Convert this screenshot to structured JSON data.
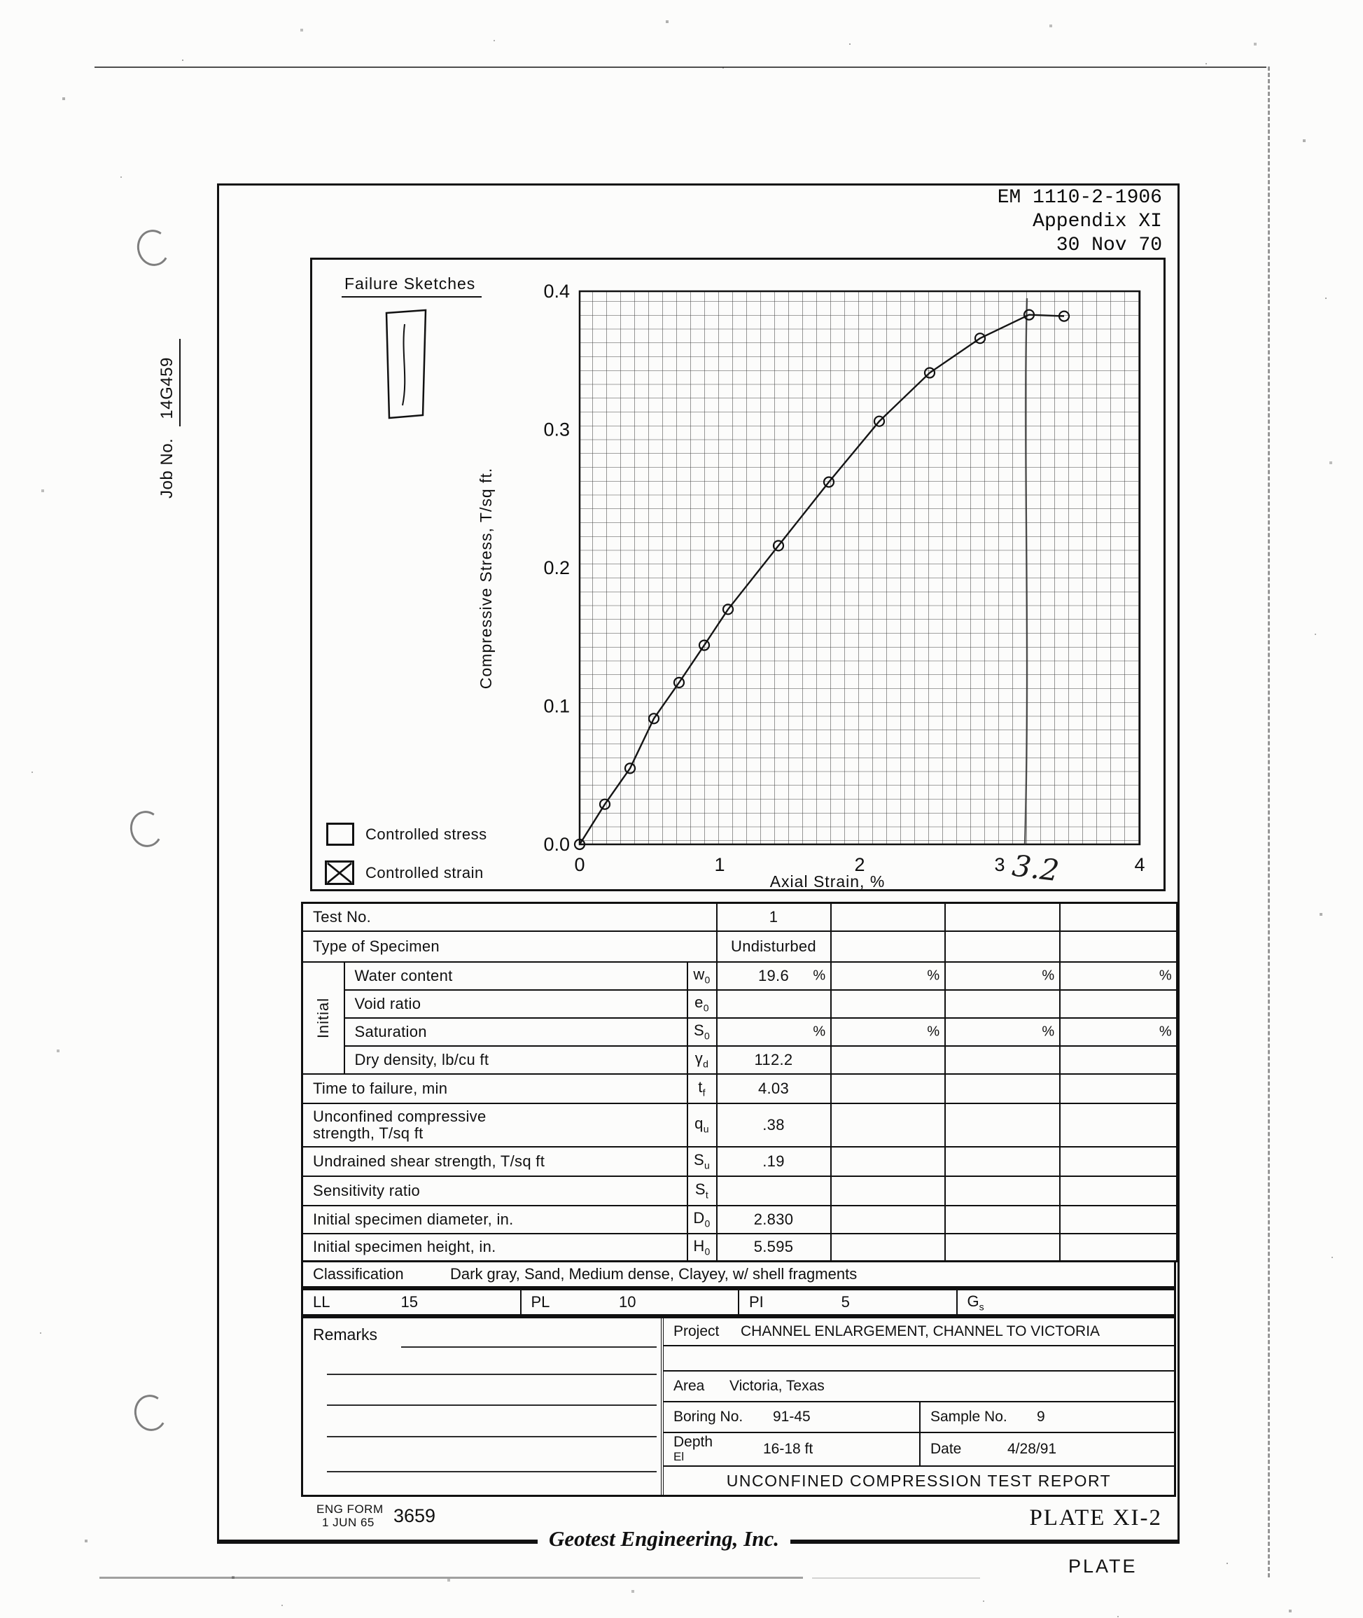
{
  "margin": {
    "job_label": "Job No.",
    "job_value": "14G459"
  },
  "header": {
    "line1": "EM 1110-2-1906",
    "line2": "Appendix XI",
    "line3": "30 Nov 70"
  },
  "chart": {
    "panel_title": "Failure Sketches",
    "legend": [
      {
        "label": "Controlled stress",
        "checked": false
      },
      {
        "label": "Controlled strain",
        "checked": true
      }
    ],
    "failure_strain_annotation": "3.2"
  },
  "chart_data": {
    "type": "line",
    "title": "",
    "xlabel": "Axial Strain, %",
    "ylabel": "Compressive Stress, T/sq ft.",
    "xlim": [
      0,
      4
    ],
    "ylim": [
      0,
      0.4
    ],
    "x_ticks": [
      0,
      1,
      2,
      3,
      4
    ],
    "y_ticks": [
      0,
      0.1,
      0.2,
      0.3,
      0.4
    ],
    "grid": true,
    "grid_step_x": 0.1,
    "grid_step_y": 0.01,
    "legend_position": "none",
    "series": [
      {
        "name": "Test 1 (Undisturbed)",
        "marker": "circle",
        "x": [
          0,
          0.18,
          0.36,
          0.53,
          0.71,
          0.89,
          1.06,
          1.42,
          1.78,
          2.14,
          2.5,
          2.86,
          3.21,
          3.46
        ],
        "y": [
          0,
          0.029,
          0.055,
          0.091,
          0.117,
          0.144,
          0.17,
          0.216,
          0.262,
          0.306,
          0.341,
          0.366,
          0.383,
          0.382
        ]
      }
    ],
    "annotations": [
      {
        "type": "vline",
        "x": 3.2,
        "style": "hand-drawn pencil line"
      },
      {
        "type": "text",
        "x": 3.2,
        "text": "3.2",
        "style": "handwritten"
      }
    ]
  },
  "spec_table": {
    "group_label": "Initial",
    "test_no": {
      "label": "Test No.",
      "v1": "1"
    },
    "type": {
      "label": "Type of Specimen",
      "v1": "Undisturbed"
    },
    "water": {
      "label": "Water content",
      "sym": "w",
      "sub": "0",
      "v1": "19.6",
      "u1": "%",
      "u2": "%",
      "u3": "%",
      "u4": "%"
    },
    "void": {
      "label": "Void ratio",
      "sym": "e",
      "sub": "0"
    },
    "sat": {
      "label": "Saturation",
      "sym": "S",
      "sub": "0",
      "u1": "%",
      "u2": "%",
      "u3": "%",
      "u4": "%"
    },
    "density": {
      "label": "Dry density, lb/cu ft",
      "sym": "γ",
      "sub": "d",
      "v1": "112.2"
    },
    "time": {
      "label": "Time to failure, min",
      "sym": "t",
      "sub": "f",
      "v1": "4.03"
    },
    "qu": {
      "label1": "Unconfined compressive",
      "label2": "strength, T/sq ft",
      "sym": "q",
      "sub": "u",
      "v1": ".38"
    },
    "su": {
      "label": "Undrained shear strength, T/sq ft",
      "sym": "S",
      "sub": "u",
      "v1": ".19"
    },
    "st": {
      "label": "Sensitivity ratio",
      "sym": "S",
      "sub": "t"
    },
    "d0": {
      "label": "Initial specimen diameter, in.",
      "sym": "D",
      "sub": "0",
      "v1": "2.830"
    },
    "h0": {
      "label": "Initial specimen height, in.",
      "sym": "H",
      "sub": "0",
      "v1": "5.595"
    }
  },
  "classification": {
    "label": "Classification",
    "value": "Dark gray, Sand, Medium dense, Clayey, w/ shell fragments"
  },
  "atterberg": {
    "ll_label": "LL",
    "ll": "15",
    "pl_label": "PL",
    "pl": "10",
    "pi_label": "PI",
    "pi": "5",
    "gs_label": "G",
    "gs_sub": "s",
    "gs": ""
  },
  "remarks": {
    "label": "Remarks"
  },
  "project_block": {
    "project_label": "Project",
    "project": "CHANNEL ENLARGEMENT, CHANNEL TO VICTORIA",
    "area_label": "Area",
    "area": "Victoria, Texas",
    "boring_label": "Boring No.",
    "boring": "91-45",
    "sample_label": "Sample No.",
    "sample": "9",
    "depth_label": "Depth",
    "depth_label2": "El",
    "depth": "16-18 ft",
    "date_label": "Date",
    "date": "4/28/91",
    "title": "UNCONFINED COMPRESSION TEST REPORT"
  },
  "footer": {
    "eng_form1": "ENG FORM",
    "eng_form2": "1 JUN 65",
    "form_no": "3659",
    "plate_no": "PLATE XI-2",
    "company": "Geotest Engineering, Inc.",
    "plate": "PLATE"
  }
}
